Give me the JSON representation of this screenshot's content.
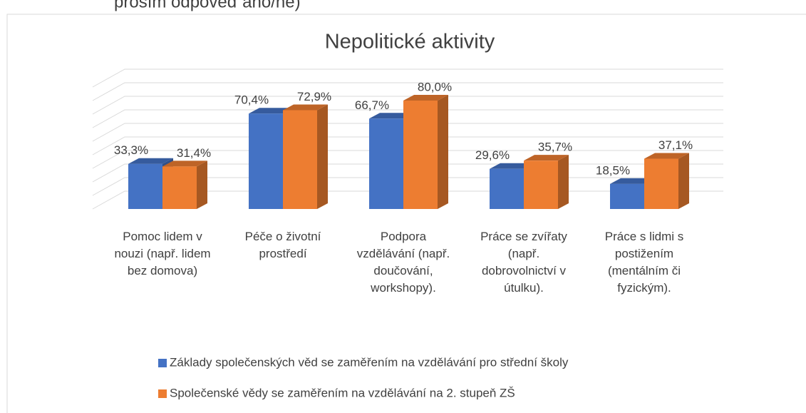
{
  "header_text": "prosím odpověď ano/ne)",
  "chart_data": {
    "type": "bar3d",
    "title": "Nepolitické aktivity",
    "categories": [
      "Pomoc lidem v nouzi (např. lidem bez domova)",
      "Péče o životní prostředí",
      "Podpora vzdělávání (např. doučování, workshopy).",
      "Práce se zvířaty (např. dobrovolnictví v útulku).",
      "Práce s lidmi s postižením (mentálním či fyzickým)."
    ],
    "series": [
      {
        "name": "Základy společenských věd se zaměřením na vzdělávání pro střední školy",
        "color": "#4472c4",
        "values": [
          33.3,
          70.4,
          66.7,
          29.6,
          18.5
        ],
        "value_labels": [
          "33,3%",
          "70,4%",
          "66,7%",
          "29,6%",
          "18,5%"
        ]
      },
      {
        "name": "Společenské vědy se zaměřením na vzdělávání na 2. stupeň ZŠ",
        "color": "#ed7d31",
        "values": [
          31.4,
          72.9,
          80.0,
          35.7,
          37.1
        ],
        "value_labels": [
          "31,4%",
          "72,9%",
          "80,0%",
          "35,7%",
          "37,1%"
        ]
      }
    ],
    "ylim": [
      0,
      90
    ],
    "yticks": [
      0,
      10,
      20,
      30,
      40,
      50,
      60,
      70,
      80,
      90
    ],
    "grid": true,
    "legend": "bottom"
  }
}
